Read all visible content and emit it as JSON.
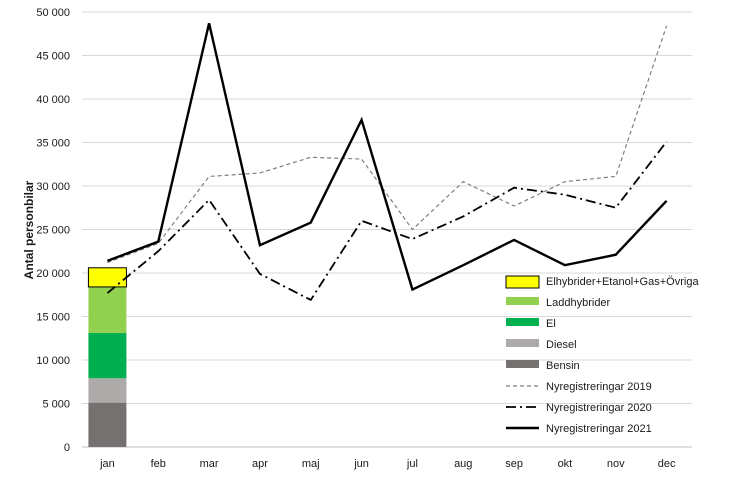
{
  "chart_data": {
    "type": "line",
    "title": "",
    "xlabel": "",
    "ylabel": "Antal personbilar",
    "ylim": [
      0,
      50000
    ],
    "yticks": [
      0,
      5000,
      10000,
      15000,
      20000,
      25000,
      30000,
      35000,
      40000,
      45000,
      50000
    ],
    "ytick_labels": [
      "0",
      "5 000",
      "10 000",
      "15 000",
      "20 000",
      "25 000",
      "30 000",
      "35 000",
      "40 000",
      "45 000",
      "50 000"
    ],
    "categories": [
      "jan",
      "feb",
      "mar",
      "apr",
      "maj",
      "jun",
      "jul",
      "aug",
      "sep",
      "okt",
      "nov",
      "dec"
    ],
    "grid": "horizontal",
    "legend_position": "right",
    "stacked_bar": {
      "category": "jan",
      "segments": [
        {
          "name": "Bensin",
          "value": 5100,
          "color": "#767171"
        },
        {
          "name": "Diesel",
          "value": 2800,
          "color": "#aeaaaa"
        },
        {
          "name": "El",
          "value": 5200,
          "color": "#00b050"
        },
        {
          "name": "Laddhybrider",
          "value": 5300,
          "color": "#92d050"
        },
        {
          "name": "Elhybrider+Etanol+Gas+Övriga",
          "value": 2200,
          "color": "#ffff00"
        }
      ]
    },
    "series": [
      {
        "name": "Nyregistreringar 2019",
        "style": "dashed",
        "color": "#7f7f7f",
        "values": [
          21200,
          23400,
          31100,
          31500,
          33300,
          33100,
          25000,
          30500,
          27700,
          30500,
          31100,
          48400
        ]
      },
      {
        "name": "Nyregistreringar 2020",
        "style": "dash-dot",
        "color": "#000000",
        "values": [
          17700,
          22500,
          28400,
          19900,
          16900,
          26000,
          23900,
          26500,
          29800,
          29000,
          27500,
          35100
        ]
      },
      {
        "name": "Nyregistreringar 2021",
        "style": "solid",
        "color": "#000000",
        "values": [
          21400,
          23600,
          48700,
          23200,
          25800,
          37600,
          18100,
          20900,
          23800,
          20900,
          22100,
          28300
        ]
      }
    ]
  }
}
